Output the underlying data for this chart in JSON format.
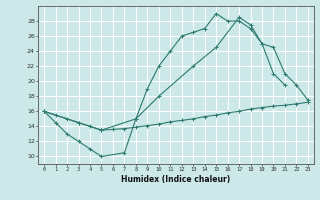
{
  "xlabel": "Humidex (Indice chaleur)",
  "bg_color": "#cce8e8",
  "grid_color": "#ffffff",
  "line_color": "#2d7a6e",
  "xlim": [
    -0.5,
    23.5
  ],
  "ylim": [
    9,
    30
  ],
  "xticks": [
    0,
    1,
    2,
    3,
    4,
    5,
    6,
    7,
    8,
    9,
    10,
    11,
    12,
    13,
    14,
    15,
    16,
    17,
    18,
    19,
    20,
    21,
    22,
    23
  ],
  "yticks": [
    10,
    12,
    14,
    16,
    18,
    20,
    22,
    24,
    26,
    28
  ],
  "line1_x": [
    0,
    1,
    2,
    3,
    4,
    5,
    7,
    8,
    9,
    10,
    11,
    12,
    13,
    14,
    15,
    16,
    17,
    18,
    19,
    20,
    21
  ],
  "line1_y": [
    16,
    14.5,
    13,
    12,
    11,
    10,
    10.5,
    15,
    19,
    22,
    24,
    26,
    26.5,
    27,
    29,
    28,
    28,
    27,
    25,
    21,
    19.5
  ],
  "line2_x": [
    0,
    1,
    2,
    3,
    4,
    5,
    6,
    7,
    8,
    9,
    10,
    11,
    12,
    13,
    14,
    15,
    16,
    17,
    18,
    19,
    20,
    21,
    22,
    23
  ],
  "line2_y": [
    16,
    15.5,
    15.0,
    14.5,
    14.0,
    13.5,
    13.6,
    13.7,
    13.9,
    14.1,
    14.3,
    14.6,
    14.8,
    15.0,
    15.3,
    15.5,
    15.8,
    16.0,
    16.3,
    16.5,
    16.7,
    16.8,
    17.0,
    17.2
  ],
  "line3_x": [
    0,
    3,
    5,
    8,
    10,
    13,
    15,
    17,
    18,
    19,
    20,
    21,
    22,
    23
  ],
  "line3_y": [
    16,
    14.5,
    13.5,
    15.0,
    18.0,
    22.0,
    24.5,
    28.5,
    27.5,
    25.0,
    24.5,
    21.0,
    19.5,
    17.5
  ]
}
